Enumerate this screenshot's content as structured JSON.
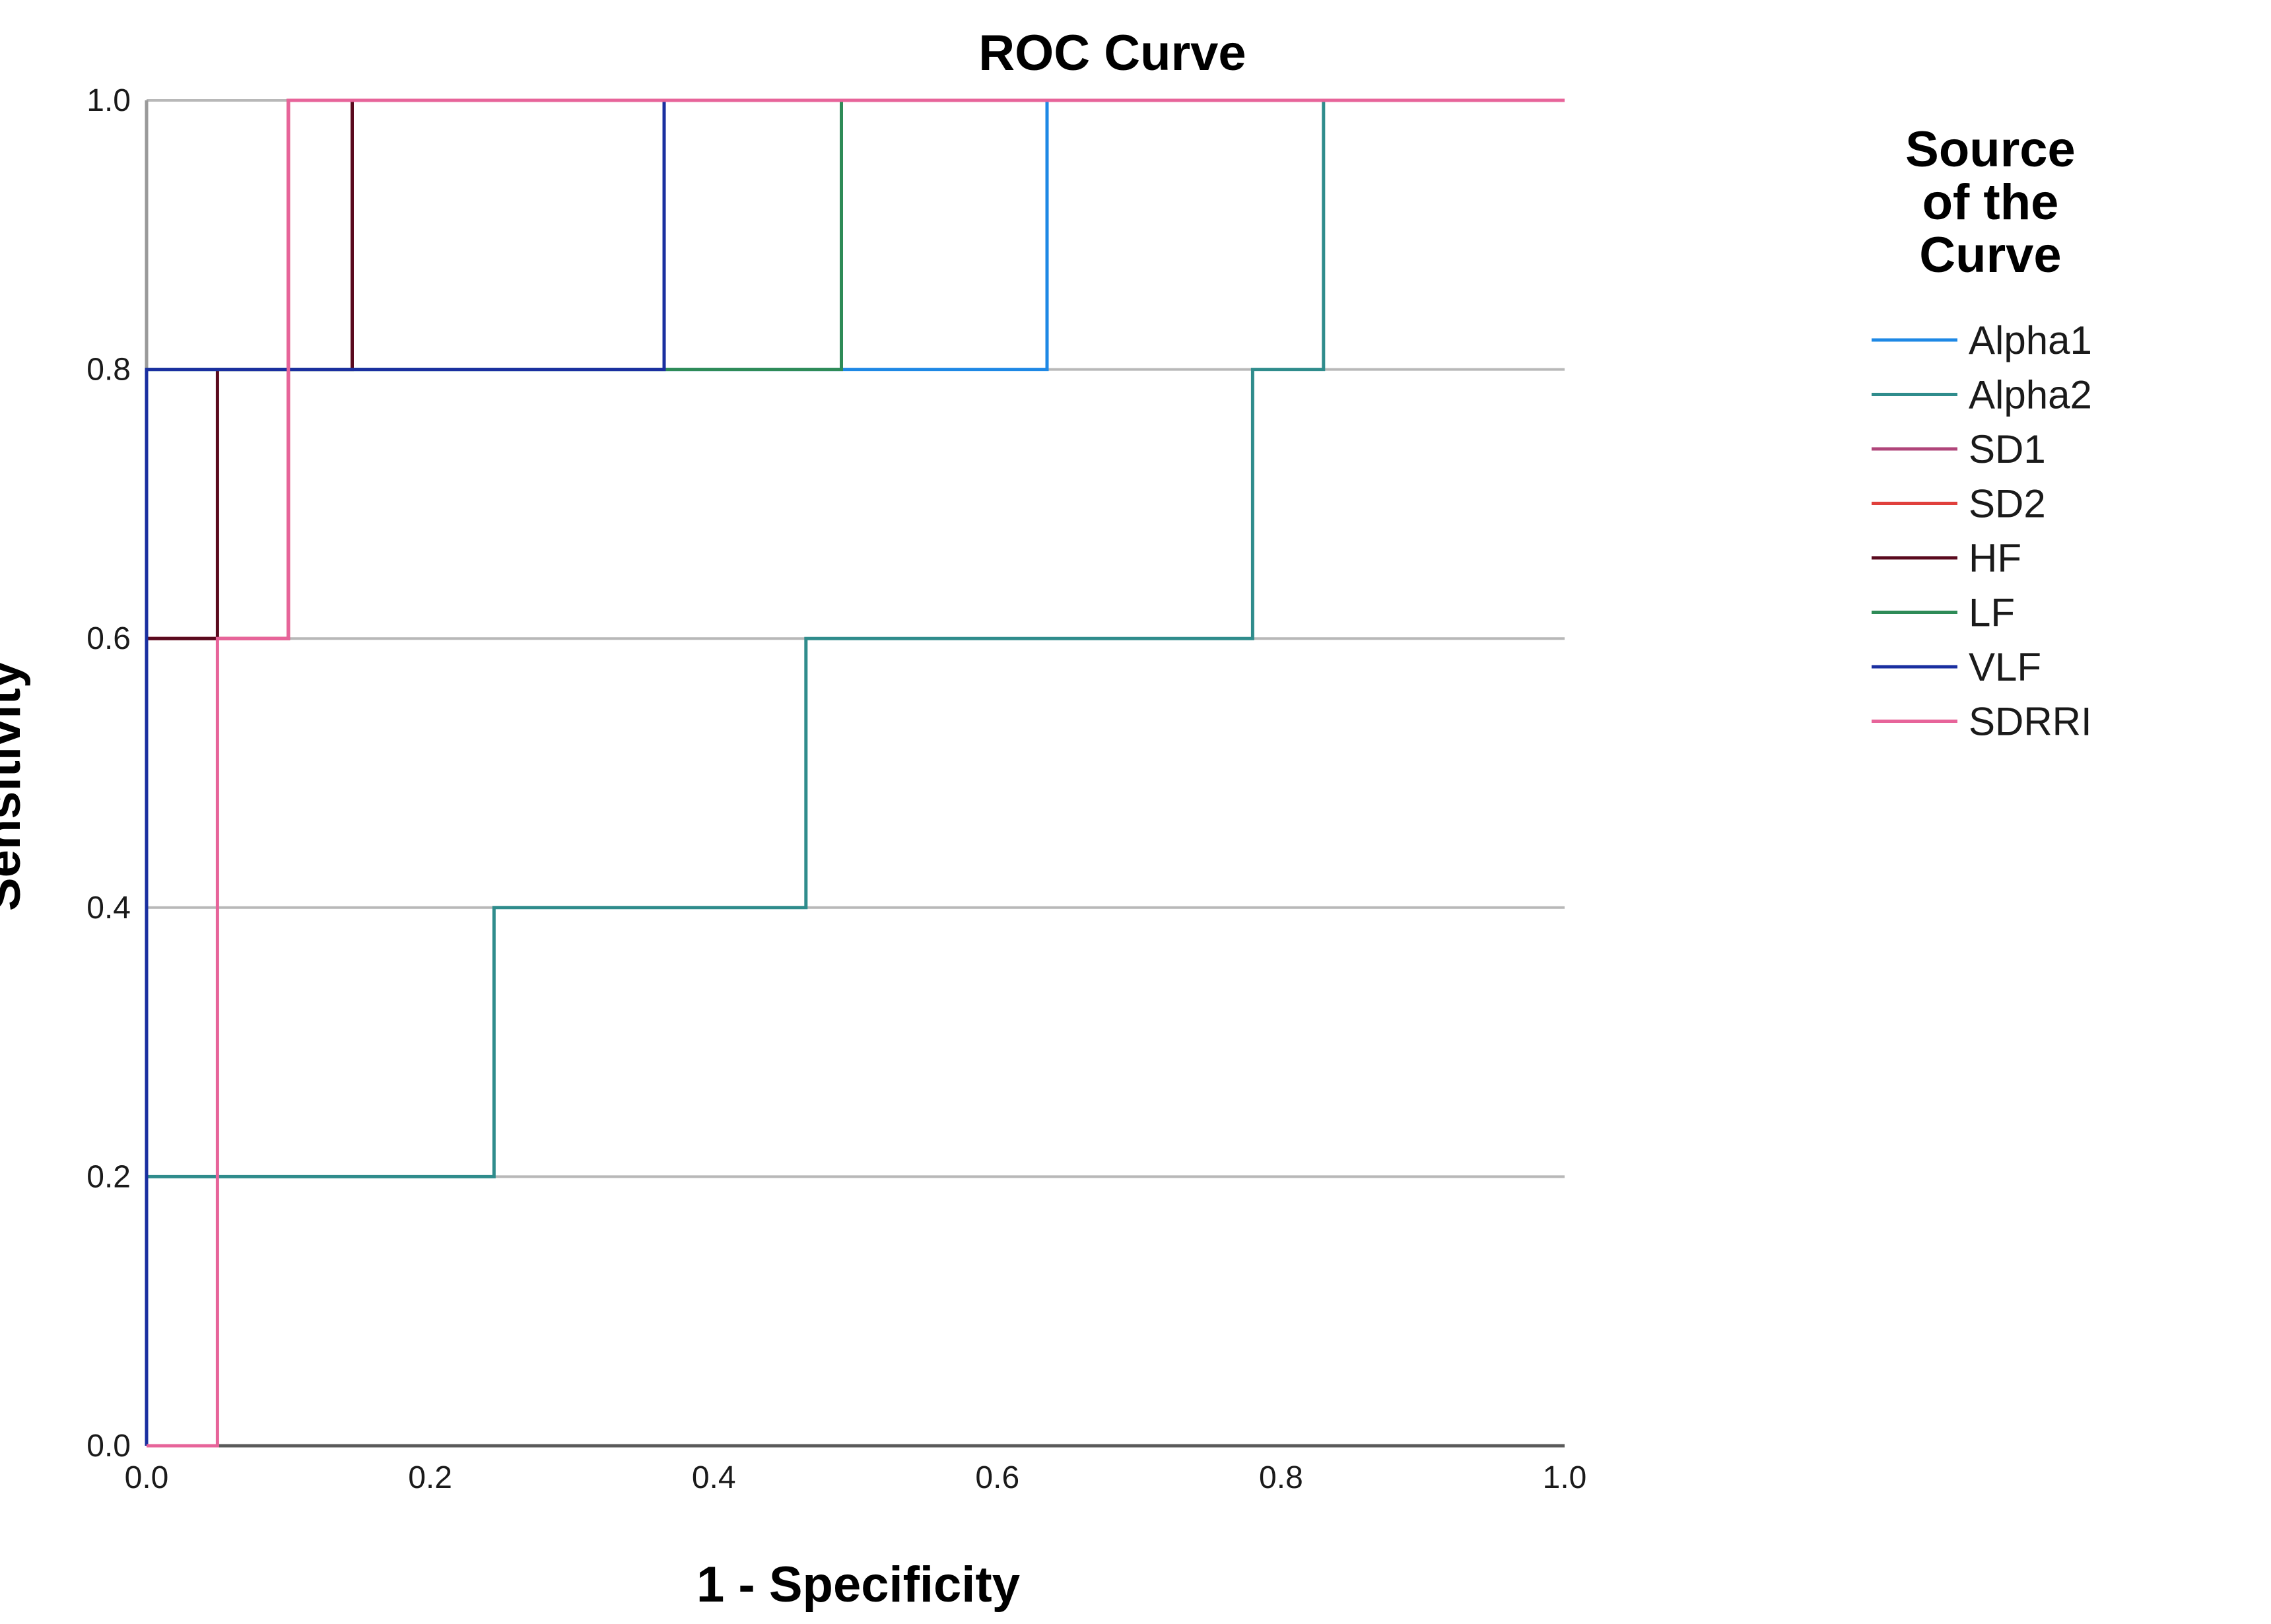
{
  "chart_data": {
    "type": "line",
    "title": "ROC Curve",
    "xlabel": "1 - Specificity",
    "ylabel": "Sensitivity",
    "xlim": [
      0.0,
      1.0
    ],
    "ylim": [
      0.0,
      1.0
    ],
    "xticks": [
      "0.0",
      "0.2",
      "0.4",
      "0.6",
      "0.8",
      "1.0"
    ],
    "yticks": [
      "0.0",
      "0.2",
      "0.4",
      "0.6",
      "0.8",
      "1.0"
    ],
    "grid": "horizontal",
    "legend": {
      "title_lines": [
        "Source",
        "of the",
        "Curve"
      ],
      "position": "right"
    },
    "series": [
      {
        "name": "Alpha1",
        "color": "#1e88e5",
        "x": [
          0.0,
          0.0,
          0.635,
          0.635,
          1.0
        ],
        "y": [
          0.0,
          0.8,
          0.8,
          1.0,
          1.0
        ]
      },
      {
        "name": "Alpha2",
        "color": "#2f8c8c",
        "x": [
          0.0,
          0.0,
          0.245,
          0.245,
          0.465,
          0.465,
          0.78,
          0.78,
          0.83,
          0.83,
          1.0
        ],
        "y": [
          0.0,
          0.2,
          0.2,
          0.4,
          0.4,
          0.6,
          0.6,
          0.8,
          0.8,
          1.0,
          1.0
        ]
      },
      {
        "name": "SD1",
        "color": "#b0457a",
        "x": [
          0.0,
          0.0,
          0.1,
          0.1,
          1.0
        ],
        "y": [
          0.0,
          0.6,
          0.6,
          1.0,
          1.0
        ]
      },
      {
        "name": "SD2",
        "color": "#e0403c",
        "x": [
          0.0,
          0.0,
          0.1,
          0.1,
          1.0
        ],
        "y": [
          0.0,
          0.6,
          0.6,
          1.0,
          1.0
        ]
      },
      {
        "name": "HF",
        "color": "#5a0a1e",
        "x": [
          0.0,
          0.0,
          0.05,
          0.05,
          0.145,
          0.145,
          1.0
        ],
        "y": [
          0.0,
          0.6,
          0.6,
          0.8,
          0.8,
          1.0,
          1.0
        ]
      },
      {
        "name": "LF",
        "color": "#2e8b57",
        "x": [
          0.0,
          0.0,
          0.49,
          0.49,
          1.0
        ],
        "y": [
          0.0,
          0.8,
          0.8,
          1.0,
          1.0
        ]
      },
      {
        "name": "VLF",
        "color": "#1a2fa0",
        "x": [
          0.0,
          0.0,
          0.365,
          0.365,
          1.0
        ],
        "y": [
          0.0,
          0.8,
          0.8,
          1.0,
          1.0
        ]
      },
      {
        "name": "SDRRI",
        "color": "#e7649a",
        "x": [
          0.0,
          0.05,
          0.05,
          0.1,
          0.1,
          1.0
        ],
        "y": [
          0.0,
          0.0,
          0.6,
          0.6,
          1.0,
          1.0
        ]
      }
    ]
  }
}
